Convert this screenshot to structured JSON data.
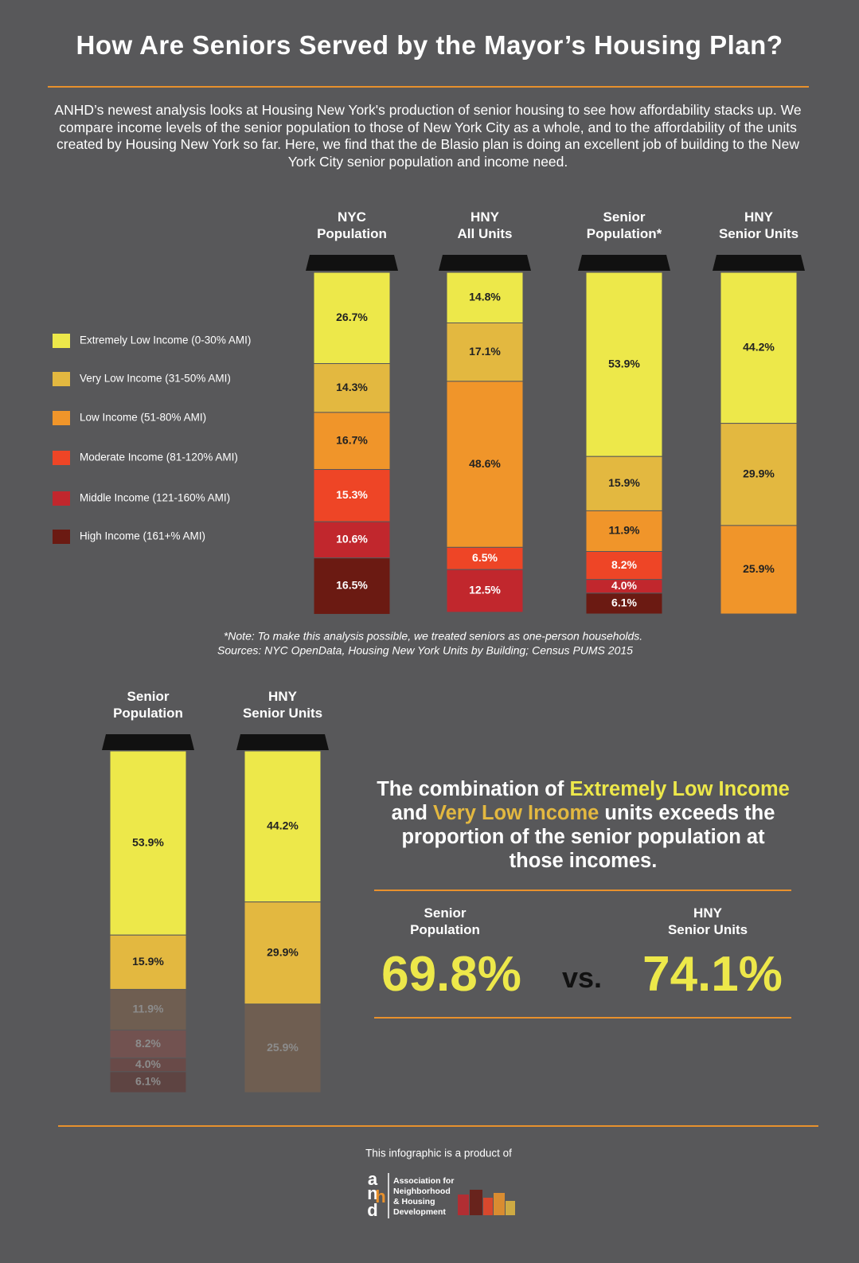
{
  "title": "How Are Seniors Served by the Mayor’s Housing Plan?",
  "intro": "ANHD’s newest analysis looks at Housing New York's production of senior housing to see how affordability stacks up. We compare income levels of the senior population to those of New York City as a whole, and to the affordability of the units created by Housing New York so far. Here, we find that the de Blasio plan is doing an excellent job of building to the New York City senior population and income need.",
  "chart_data": [
    {
      "type": "bar",
      "stacked": true,
      "ylim": [
        0,
        100
      ],
      "categories": [
        "NYC Population",
        "HNY All Units",
        "Senior Population*",
        "HNY Senior Units"
      ],
      "series": [
        {
          "name": "Extremely Low Income (0-30% AMI)",
          "color": "#ede84a",
          "label_color": "#222222",
          "values": [
            26.7,
            14.8,
            53.9,
            44.2
          ],
          "value_labels": [
            "26.7%",
            "14.8%",
            "53.9%",
            "44.2%"
          ]
        },
        {
          "name": "Very Low Income (31-50% AMI)",
          "color": "#e3b840",
          "label_color": "#222222",
          "values": [
            14.3,
            17.1,
            15.9,
            29.9
          ],
          "value_labels": [
            "14.3%",
            "17.1%",
            "15.9%",
            "29.9%"
          ]
        },
        {
          "name": "Low Income (51-80% AMI)",
          "color": "#f0952a",
          "label_color": "#222222",
          "values": [
            16.7,
            48.6,
            11.9,
            25.9
          ],
          "value_labels": [
            "16.7%",
            "48.6%",
            "11.9%",
            "25.9%"
          ]
        },
        {
          "name": "Moderate Income (81-120% AMI)",
          "color": "#ee4526",
          "label_color": "#ffffff",
          "values": [
            15.3,
            6.5,
            8.2,
            null
          ],
          "value_labels": [
            "15.3%",
            "6.5%",
            "8.2%",
            null
          ]
        },
        {
          "name": "Middle Income (121-160% AMI)",
          "color": "#c1272d",
          "label_color": "#ffffff",
          "values": [
            10.6,
            12.5,
            4.0,
            null
          ],
          "value_labels": [
            "10.6%",
            "12.5%",
            "4.0%",
            null
          ]
        },
        {
          "name": "High Income (161+% AMI)",
          "color": "#6b1a12",
          "label_color": "#ffffff",
          "values": [
            16.5,
            null,
            6.1,
            null
          ],
          "value_labels": [
            "16.5%",
            null,
            "6.1%",
            null
          ]
        }
      ]
    },
    {
      "type": "bar",
      "stacked": true,
      "ylim": [
        0,
        100
      ],
      "categories": [
        "Senior Population",
        "HNY Senior Units"
      ],
      "series": [
        {
          "color": "#ede84a",
          "label_color": "#222222",
          "values": [
            53.9,
            44.2
          ],
          "value_labels": [
            "53.9%",
            "44.2%"
          ]
        },
        {
          "color": "#e3b840",
          "label_color": "#222222",
          "values": [
            15.9,
            29.9
          ],
          "value_labels": [
            "15.9%",
            "29.9%"
          ]
        },
        {
          "color": "#6f5e51",
          "label_color": "#8c8c8c",
          "values": [
            11.9,
            25.9
          ],
          "value_labels": [
            "11.9%",
            "25.9%"
          ]
        },
        {
          "color": "#725250",
          "label_color": "#8c8c8c",
          "values": [
            8.2,
            null
          ],
          "value_labels": [
            "8.2%",
            null
          ]
        },
        {
          "color": "#694a48",
          "label_color": "#8c8c8c",
          "values": [
            4.0,
            null
          ],
          "value_labels": [
            "4.0%",
            null
          ]
        },
        {
          "color": "#5e4442",
          "label_color": "#8c8c8c",
          "values": [
            6.1,
            null
          ],
          "value_labels": [
            "6.1%",
            null
          ]
        }
      ]
    }
  ],
  "note": "*Note: To make this analysis possible, we treated seniors as one-person households.",
  "sources": "Sources: NYC OpenData, Housing New York Units by Building; Census PUMS 2015",
  "callout": {
    "part1": "The combination of",
    "highlight1": "Extremely Low Income",
    "part2": "and",
    "highlight2": "Very Low Income",
    "part3": "units exceeds the proportion of the senior population at those incomes."
  },
  "comparison": {
    "left_label": "Senior Population",
    "left_value": "69.8%",
    "vs": "vs.",
    "right_label": "HNY Senior Units",
    "right_value": "74.1%"
  },
  "footer": "This infographic is a product of",
  "logo": {
    "letters": [
      "a",
      "n",
      "h",
      "d"
    ],
    "lines": [
      "Association for",
      "Neighborhood",
      "& Housing",
      "Development"
    ]
  }
}
